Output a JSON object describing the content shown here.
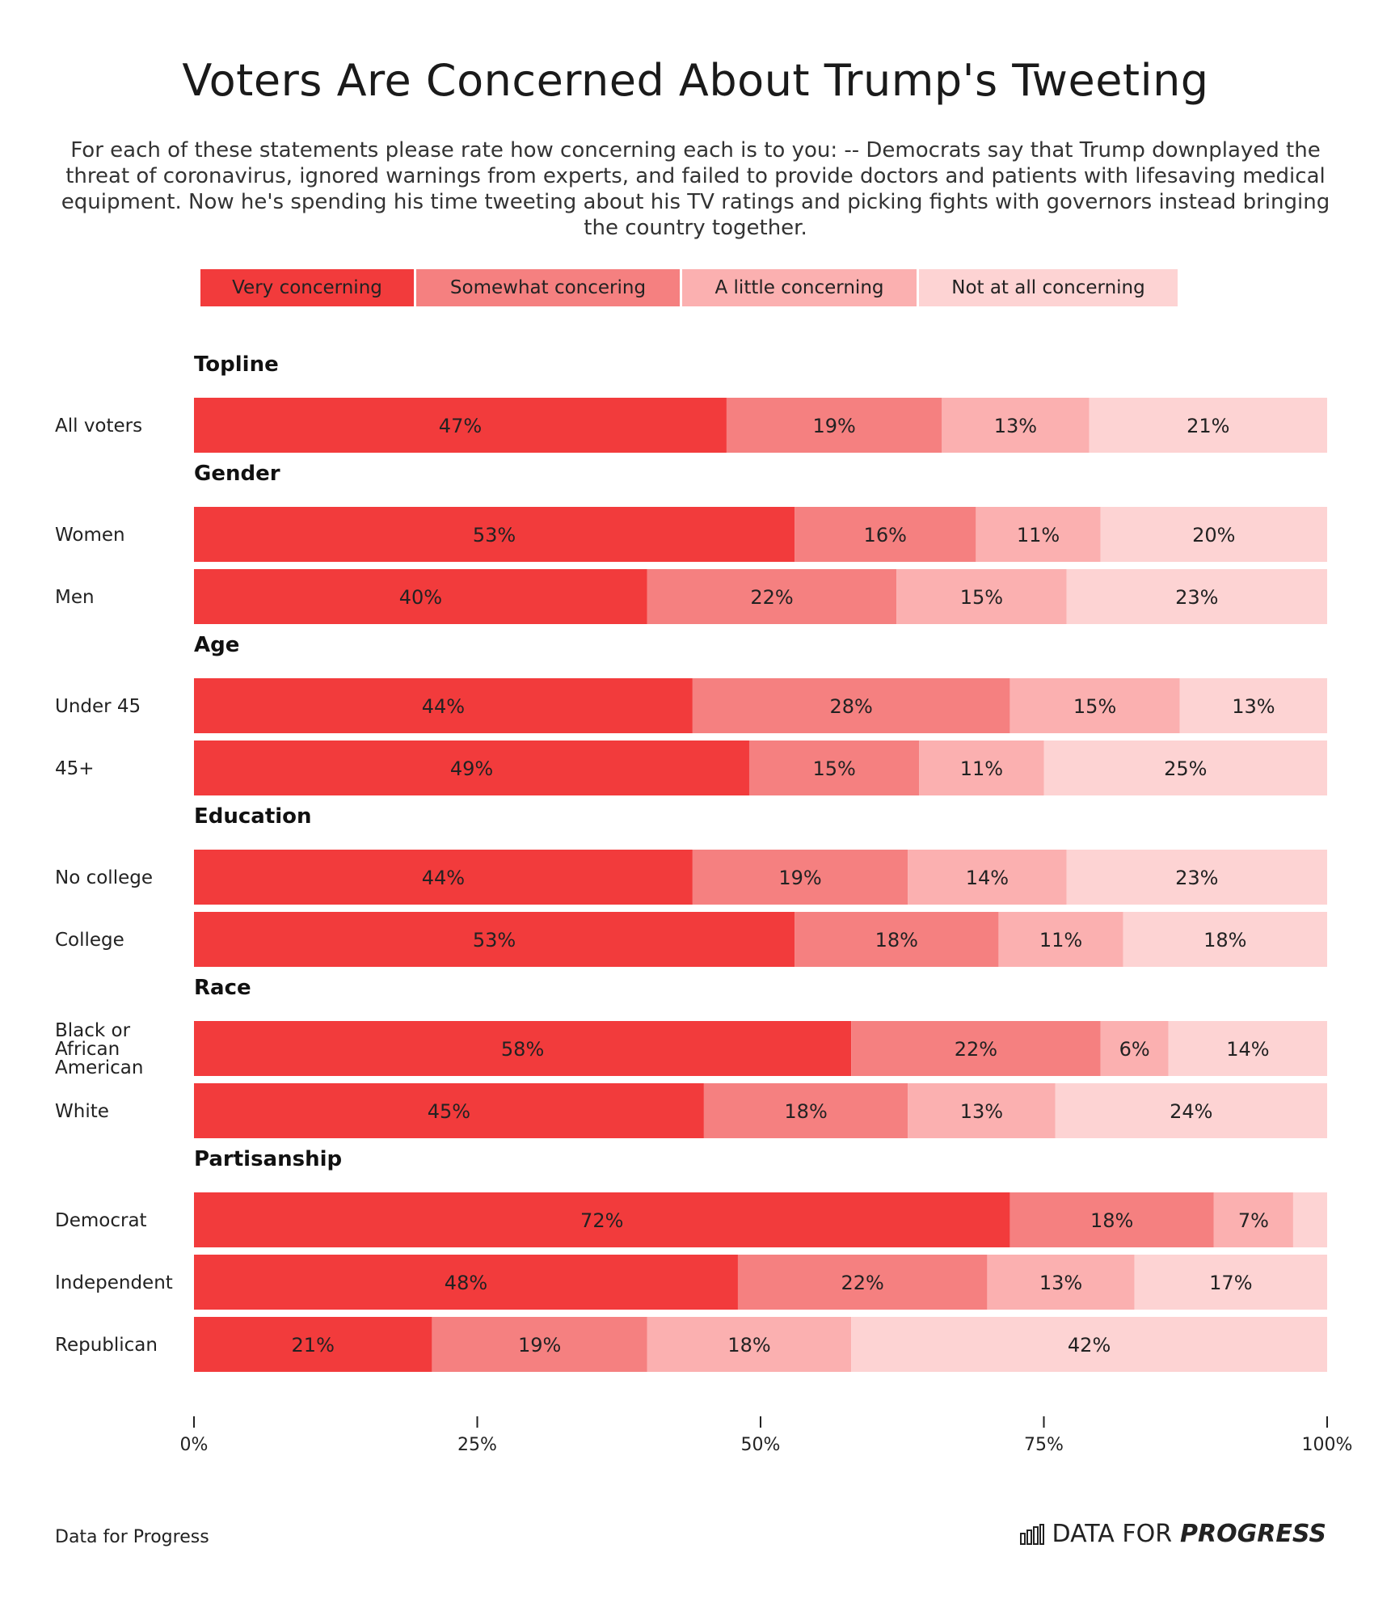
{
  "title": "Voters Are Concerned About Trump's Tweeting",
  "subtitle": "For each of these statements please rate how concerning each is to you: -- Democrats say that Trump downplayed the threat of coronavirus, ignored warnings from experts, and failed to provide doctors and patients with lifesaving medical equipment. Now he's spending his time tweeting about his TV ratings and picking fights with governors instead bringing the country together.",
  "colors": {
    "very": "#f23b3c",
    "somewhat": "#f58080",
    "little": "#fbb0b0",
    "not": "#fdd3d3"
  },
  "legend": [
    "Very concerning",
    "Somewhat concering",
    "A little concerning",
    "Not at all concerning"
  ],
  "source": "Data for Progress",
  "logo": {
    "icon": "bar-chart-icon",
    "text_regular": "DATA FOR",
    "text_bold": "PROGRESS"
  },
  "chart_data": {
    "type": "bar",
    "orientation": "horizontal",
    "stacked": true,
    "xlim": [
      0,
      100
    ],
    "x_ticks": [
      "0%",
      "25%",
      "50%",
      "75%",
      "100%"
    ],
    "series_names": [
      "Very concerning",
      "Somewhat concering",
      "A little concerning",
      "Not at all concerning"
    ],
    "groups": [
      {
        "name": "Topline",
        "rows": [
          {
            "label": "All voters",
            "values": [
              47,
              19,
              13,
              21
            ],
            "labels": [
              "47%",
              "19%",
              "13%",
              "21%"
            ]
          }
        ]
      },
      {
        "name": "Gender",
        "rows": [
          {
            "label": "Women",
            "values": [
              53,
              16,
              11,
              20
            ],
            "labels": [
              "53%",
              "16%",
              "11%",
              "20%"
            ]
          },
          {
            "label": "Men",
            "values": [
              40,
              22,
              15,
              23
            ],
            "labels": [
              "40%",
              "22%",
              "15%",
              "23%"
            ]
          }
        ]
      },
      {
        "name": "Age",
        "rows": [
          {
            "label": "Under 45",
            "values": [
              44,
              28,
              15,
              13
            ],
            "labels": [
              "44%",
              "28%",
              "15%",
              "13%"
            ]
          },
          {
            "label": "45+",
            "values": [
              49,
              15,
              11,
              25
            ],
            "labels": [
              "49%",
              "15%",
              "11%",
              "25%"
            ]
          }
        ]
      },
      {
        "name": "Education",
        "rows": [
          {
            "label": "No college",
            "values": [
              44,
              19,
              14,
              23
            ],
            "labels": [
              "44%",
              "19%",
              "14%",
              "23%"
            ]
          },
          {
            "label": "College",
            "values": [
              53,
              18,
              11,
              18
            ],
            "labels": [
              "53%",
              "18%",
              "11%",
              "18%"
            ]
          }
        ]
      },
      {
        "name": "Race",
        "rows": [
          {
            "label": "Black or African American",
            "values": [
              58,
              22,
              6,
              14
            ],
            "labels": [
              "58%",
              "22%",
              "6%",
              "14%"
            ]
          },
          {
            "label": "White",
            "values": [
              45,
              18,
              13,
              24
            ],
            "labels": [
              "45%",
              "18%",
              "13%",
              "24%"
            ]
          }
        ]
      },
      {
        "name": "Partisanship",
        "rows": [
          {
            "label": "Democrat",
            "values": [
              72,
              18,
              7,
              3
            ],
            "labels": [
              "72%",
              "18%",
              "7%",
              ""
            ]
          },
          {
            "label": "Independent",
            "values": [
              48,
              22,
              13,
              17
            ],
            "labels": [
              "48%",
              "22%",
              "13%",
              "17%"
            ]
          },
          {
            "label": "Republican",
            "values": [
              21,
              19,
              18,
              42
            ],
            "labels": [
              "21%",
              "19%",
              "18%",
              "42%"
            ]
          }
        ]
      }
    ]
  }
}
